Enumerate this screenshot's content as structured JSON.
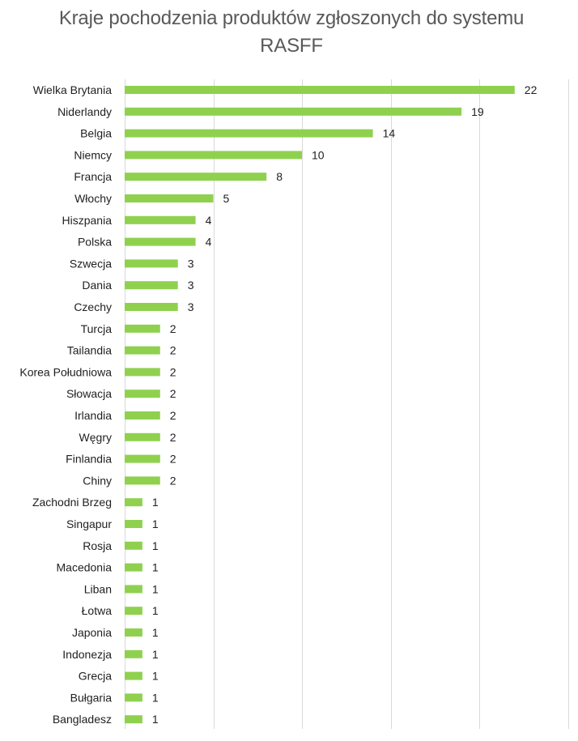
{
  "chart_data": {
    "type": "bar",
    "orientation": "horizontal",
    "title": "Kraje pochodzenia produktów zgłoszonych do systemu RASFF",
    "xlabel": "",
    "ylabel": "",
    "xlim": [
      0,
      25
    ],
    "grid": true,
    "legend": "none",
    "bar_color": "#8fd14f",
    "categories": [
      "Wielka Brytania",
      "Niderlandy",
      "Belgia",
      "Niemcy",
      "Francja",
      "Włochy",
      "Hiszpania",
      "Polska",
      "Szwecja",
      "Dania",
      "Czechy",
      "Turcja",
      "Tailandia",
      "Korea Południowa",
      "Słowacja",
      "Irlandia",
      "Węgry",
      "Finlandia",
      "Chiny",
      "Zachodni Brzeg",
      "Singapur",
      "Rosja",
      "Macedonia",
      "Liban",
      "Łotwa",
      "Japonia",
      "Indonezja",
      "Grecja",
      "Bułgaria",
      "Bangladesz"
    ],
    "values": [
      22,
      19,
      14,
      10,
      8,
      5,
      4,
      4,
      3,
      3,
      3,
      2,
      2,
      2,
      2,
      2,
      2,
      2,
      2,
      1,
      1,
      1,
      1,
      1,
      1,
      1,
      1,
      1,
      1,
      1
    ]
  }
}
